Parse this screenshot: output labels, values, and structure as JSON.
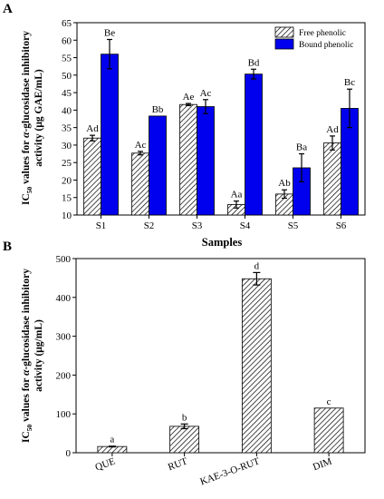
{
  "chart_data": [
    {
      "panel_label": "A",
      "type": "bar",
      "categories": [
        "S1",
        "S2",
        "S3",
        "S4",
        "S5",
        "S6"
      ],
      "series": [
        {
          "name": "Free phenolic",
          "color": "#ffffff",
          "pattern": "hatch",
          "values": [
            32.0,
            27.7,
            41.6,
            13.0,
            16.0,
            30.6
          ],
          "errors": [
            0.8,
            0.5,
            0.3,
            1.0,
            1.2,
            2.0
          ],
          "labels": [
            "Ad",
            "Ac",
            "Ae",
            "Aa",
            "Ab",
            "Ad"
          ]
        },
        {
          "name": "Bound phenolic",
          "color": "#0000ee",
          "pattern": "solid",
          "values": [
            56.0,
            38.3,
            41.0,
            50.3,
            23.5,
            40.5
          ],
          "errors": [
            4.2,
            0.0,
            2.0,
            1.4,
            4.0,
            5.5
          ],
          "labels": [
            "Be",
            "Bb",
            "Ac",
            "Bd",
            "Ba",
            "Bc"
          ]
        }
      ],
      "ylim": [
        10,
        65
      ],
      "yticks": [
        10,
        15,
        20,
        25,
        30,
        35,
        40,
        45,
        50,
        55,
        60,
        65
      ],
      "xlabel": "Samples",
      "ylabel_lines": [
        "IC50 values for α-glucosidase inhibitory",
        "activity (μg GAE/mL)"
      ],
      "legend_position": "top-right",
      "grid": false
    },
    {
      "panel_label": "B",
      "type": "bar",
      "categories": [
        "QUE",
        "RUT",
        "KAE-3-O-RUT",
        "DIM"
      ],
      "series": [
        {
          "name": "",
          "pattern": "hatch",
          "values": [
            16,
            68,
            448,
            115
          ],
          "errors": [
            1,
            6,
            16,
            0
          ],
          "labels": [
            "a",
            "b",
            "d",
            "c"
          ]
        }
      ],
      "ylim": [
        0,
        500
      ],
      "yticks": [
        0,
        100,
        200,
        300,
        400,
        500
      ],
      "ylabel_lines": [
        "IC50 values for α-glucosidase inhibitory",
        "activity (μg/mL)"
      ],
      "grid": false
    }
  ]
}
